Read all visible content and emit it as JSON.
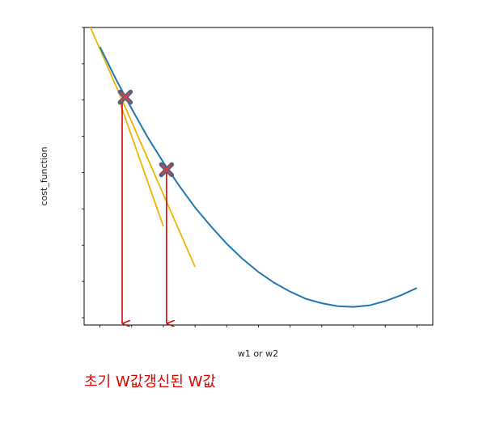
{
  "chart_data": {
    "type": "line",
    "title": "",
    "xlabel": "w1 or w2",
    "ylabel": "cost_function",
    "xlim": [
      -0.5,
      10.5
    ],
    "ylim": [
      -1,
      40
    ],
    "grid": false,
    "series": [
      {
        "values_x": [
          0,
          0.5,
          1,
          1.5,
          2,
          2.5,
          3,
          3.5,
          4,
          4.5,
          5,
          5.5,
          6,
          6.5,
          7,
          7.5,
          8,
          8.5,
          9,
          9.5,
          10
        ],
        "values_y": [
          37.3,
          32.9,
          28.8,
          24.9,
          21.4,
          18.2,
          15.2,
          12.6,
          10.2,
          8.1,
          6.3,
          4.8,
          3.6,
          2.6,
          2.0,
          1.6,
          1.5,
          1.7,
          2.3,
          3.1,
          4.1
        ]
      }
    ],
    "tangent_lines": [
      {
        "x": [
          -0.3,
          3.0
        ],
        "y": [
          40,
          7
        ]
      },
      {
        "x": [
          0.6,
          2.0
        ],
        "y": [
          30,
          12.6
        ]
      }
    ],
    "points": [
      {
        "x": 0.8,
        "y": 30.4
      },
      {
        "x": 2.1,
        "y": 20.4
      }
    ],
    "arrows": [
      {
        "x": 0.7,
        "from_y": 30.0,
        "to_y": -0.8
      },
      {
        "x": 2.1,
        "from_y": 20.2,
        "to_y": -0.8
      }
    ],
    "colors": {
      "curve": "#1f77b4",
      "tangent": "#f0b400",
      "arrow": "#e00000",
      "marker_outer": "#556080",
      "marker_inner": "#e04040"
    }
  },
  "caption": {
    "initial": "초기 W값",
    "updated": "갱신된 W값",
    "color": "#e00000"
  }
}
